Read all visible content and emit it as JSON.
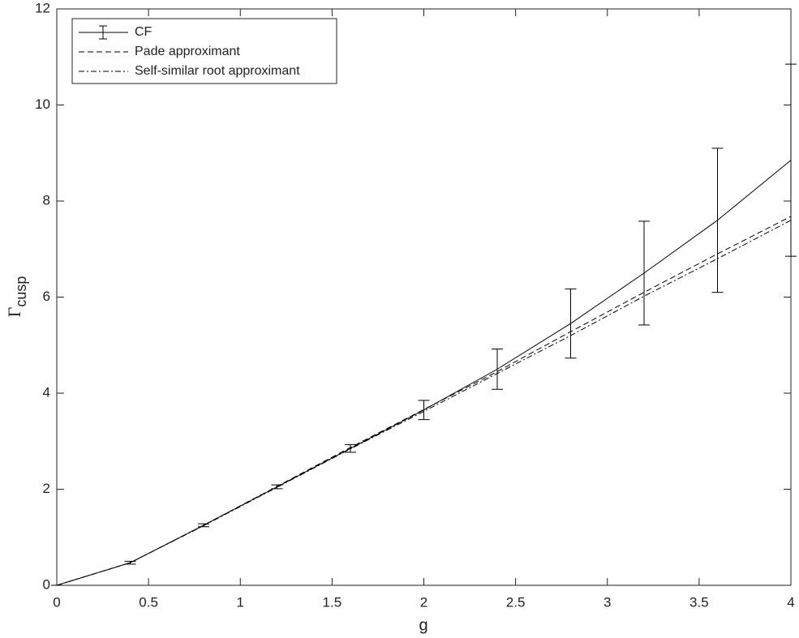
{
  "chart_data": {
    "type": "line",
    "xlabel": "g",
    "ylabel": "Γ",
    "ylabel_subscript": "cusp",
    "x": [
      0,
      0.4,
      0.8,
      1.2,
      1.6,
      2.0,
      2.4,
      2.8,
      3.2,
      3.6,
      4.0
    ],
    "series": [
      {
        "name": "CF",
        "color": "#000000",
        "dash": "solid",
        "values": [
          0,
          0.47,
          1.25,
          2.05,
          2.85,
          3.65,
          4.5,
          5.45,
          6.5,
          7.6,
          8.85
        ],
        "errors": [
          0,
          0.03,
          0.03,
          0.04,
          0.08,
          0.2,
          0.42,
          0.72,
          1.08,
          1.5,
          2.0
        ]
      },
      {
        "name": "Pade approximant",
        "color": "#000000",
        "dash": "dashed",
        "values": [
          0,
          0.47,
          1.25,
          2.06,
          2.87,
          3.66,
          4.45,
          5.28,
          6.1,
          6.9,
          7.68
        ]
      },
      {
        "name": "Self-similar root approximant",
        "color": "#000000",
        "dash": "dashdot",
        "values": [
          0,
          0.47,
          1.24,
          2.04,
          2.84,
          3.62,
          4.41,
          5.2,
          6.02,
          6.8,
          7.6
        ]
      }
    ],
    "xlim": [
      0,
      4
    ],
    "xticks": [
      0,
      0.5,
      1,
      1.5,
      2,
      2.5,
      3,
      3.5,
      4
    ],
    "ylim": [
      0,
      12
    ],
    "yticks": [
      0,
      2,
      4,
      6,
      8,
      10,
      12
    ],
    "legend": "upper left",
    "grid": false
  }
}
